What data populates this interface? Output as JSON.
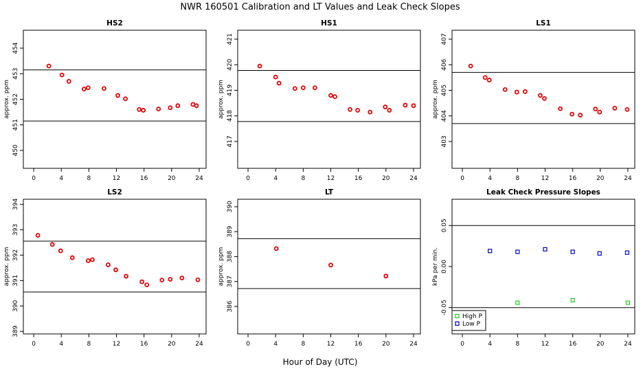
{
  "figure": {
    "title": "NWR  160501  Calibration and LT Values and Leak Check Slopes",
    "xlabel": "Hour of Day (UTC)"
  },
  "chart_data": [
    {
      "type": "scatter",
      "title": "HS2",
      "ylabel": "approx. ppm",
      "xlim": [
        -1.5,
        25
      ],
      "ylim": [
        449.3,
        454.7
      ],
      "xticks": [
        0,
        4,
        8,
        12,
        16,
        20,
        24
      ],
      "yticks": [
        450,
        451,
        452,
        453,
        454
      ],
      "hlines": [
        453.15,
        451.15
      ],
      "series": [
        {
          "color": "#e00000",
          "points": [
            [
              2.2,
              453.3
            ],
            [
              4.1,
              452.95
            ],
            [
              5.1,
              452.7
            ],
            [
              7.3,
              452.4
            ],
            [
              7.9,
              452.45
            ],
            [
              10.2,
              452.42
            ],
            [
              12.2,
              452.15
            ],
            [
              13.3,
              452.02
            ],
            [
              15.3,
              451.6
            ],
            [
              15.9,
              451.57
            ],
            [
              18.1,
              451.62
            ],
            [
              19.8,
              451.67
            ],
            [
              20.9,
              451.75
            ],
            [
              23.1,
              451.8
            ],
            [
              23.6,
              451.75
            ]
          ]
        }
      ]
    },
    {
      "type": "scatter",
      "title": "HS1",
      "ylabel": "approx. ppm",
      "xlim": [
        -1.5,
        25
      ],
      "ylim": [
        415.95,
        421.35
      ],
      "xticks": [
        0,
        4,
        8,
        12,
        16,
        20,
        24
      ],
      "yticks": [
        417,
        418,
        419,
        420,
        421
      ],
      "hlines": [
        419.78,
        417.78
      ],
      "series": [
        {
          "color": "#e00000",
          "points": [
            [
              1.7,
              419.95
            ],
            [
              4.0,
              419.52
            ],
            [
              4.5,
              419.28
            ],
            [
              6.8,
              419.07
            ],
            [
              8.0,
              419.1
            ],
            [
              9.7,
              419.1
            ],
            [
              12.0,
              418.8
            ],
            [
              12.6,
              418.75
            ],
            [
              14.8,
              418.25
            ],
            [
              15.9,
              418.22
            ],
            [
              17.7,
              418.15
            ],
            [
              19.9,
              418.35
            ],
            [
              20.5,
              418.22
            ],
            [
              22.8,
              418.42
            ],
            [
              24.0,
              418.4
            ]
          ]
        }
      ]
    },
    {
      "type": "scatter",
      "title": "LS1",
      "ylabel": "approx. ppm",
      "xlim": [
        -1.5,
        25
      ],
      "ylim": [
        401.95,
        407.35
      ],
      "xticks": [
        0,
        4,
        8,
        12,
        16,
        20,
        24
      ],
      "yticks": [
        403,
        404,
        405,
        406,
        407
      ],
      "hlines": [
        405.7,
        403.7
      ],
      "series": [
        {
          "color": "#e00000",
          "points": [
            [
              1.2,
              405.95
            ],
            [
              3.3,
              405.5
            ],
            [
              3.9,
              405.4
            ],
            [
              6.2,
              405.03
            ],
            [
              7.9,
              404.93
            ],
            [
              9.1,
              404.95
            ],
            [
              11.3,
              404.8
            ],
            [
              11.9,
              404.68
            ],
            [
              14.2,
              404.28
            ],
            [
              15.9,
              404.07
            ],
            [
              17.1,
              404.03
            ],
            [
              19.3,
              404.27
            ],
            [
              19.9,
              404.15
            ],
            [
              22.1,
              404.3
            ],
            [
              23.9,
              404.25
            ]
          ]
        }
      ]
    },
    {
      "type": "scatter",
      "title": "LS2",
      "ylabel": "approx. ppm",
      "xlim": [
        -1.5,
        25
      ],
      "ylim": [
        388.9,
        394.2
      ],
      "xticks": [
        0,
        4,
        8,
        12,
        16,
        20,
        24
      ],
      "yticks": [
        389,
        390,
        391,
        392,
        393,
        394
      ],
      "hlines": [
        392.55,
        390.55
      ],
      "series": [
        {
          "color": "#e00000",
          "points": [
            [
              0.6,
              392.78
            ],
            [
              2.7,
              392.42
            ],
            [
              3.9,
              392.17
            ],
            [
              5.6,
              391.9
            ],
            [
              7.9,
              391.78
            ],
            [
              8.5,
              391.82
            ],
            [
              10.8,
              391.62
            ],
            [
              11.9,
              391.42
            ],
            [
              13.4,
              391.17
            ],
            [
              15.7,
              390.95
            ],
            [
              16.4,
              390.83
            ],
            [
              18.6,
              391.02
            ],
            [
              19.8,
              391.05
            ],
            [
              21.5,
              391.1
            ],
            [
              23.8,
              391.03
            ]
          ]
        }
      ]
    },
    {
      "type": "scatter",
      "title": "LT",
      "ylabel": "approx. ppm",
      "xlim": [
        -1.5,
        25
      ],
      "ylim": [
        384.9,
        390.3
      ],
      "xticks": [
        0,
        4,
        8,
        12,
        16,
        20,
        24
      ],
      "yticks": [
        386,
        387,
        388,
        389,
        390
      ],
      "hlines": [
        388.72,
        386.72
      ],
      "series": [
        {
          "color": "#e00000",
          "points": [
            [
              4.1,
              388.32
            ],
            [
              12.0,
              387.66
            ],
            [
              20.0,
              387.22
            ]
          ]
        }
      ]
    },
    {
      "type": "scatter",
      "title": "Leak Check Pressure Slopes",
      "ylabel": "kPa per min.",
      "xlim": [
        -1.5,
        25
      ],
      "ylim": [
        -0.082,
        0.082
      ],
      "xticks": [
        0,
        4,
        8,
        12,
        16,
        20,
        24
      ],
      "yticks": [
        -0.05,
        0.0,
        0.05
      ],
      "ytick_labels": [
        "-0.05",
        "0.00",
        "0.05"
      ],
      "hlines": [
        0.05,
        -0.05
      ],
      "legend": "bottom-left",
      "series": [
        {
          "name": "High P",
          "color": "#22cc22",
          "points": [
            [
              8.0,
              -0.044
            ],
            [
              16.0,
              -0.041
            ],
            [
              24.0,
              -0.044
            ]
          ]
        },
        {
          "name": "Low P",
          "color": "#0000cc",
          "points": [
            [
              4.0,
              0.019
            ],
            [
              8.0,
              0.018
            ],
            [
              12.0,
              0.021
            ],
            [
              16.0,
              0.018
            ],
            [
              19.9,
              0.016
            ],
            [
              23.9,
              0.017
            ]
          ]
        }
      ]
    }
  ]
}
